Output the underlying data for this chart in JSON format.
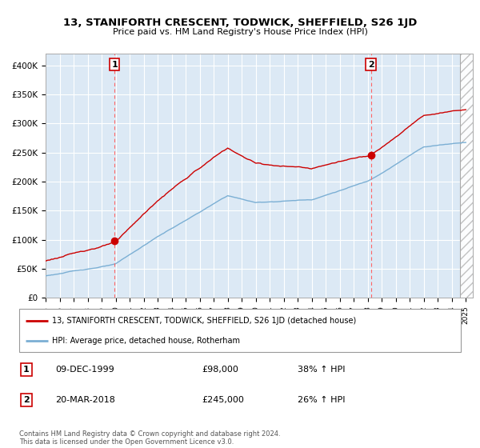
{
  "title": "13, STANIFORTH CRESCENT, TODWICK, SHEFFIELD, S26 1JD",
  "subtitle": "Price paid vs. HM Land Registry's House Price Index (HPI)",
  "ylabel_ticks": [
    "£0",
    "£50K",
    "£100K",
    "£150K",
    "£200K",
    "£250K",
    "£300K",
    "£350K",
    "£400K"
  ],
  "ylim": [
    0,
    420000
  ],
  "xlim_start": 1995.0,
  "xlim_end": 2025.5,
  "hpi_color": "#7bafd4",
  "price_color": "#cc0000",
  "marker1_year": 1999.92,
  "marker1_price": 98000,
  "marker2_year": 2018.22,
  "marker2_price": 245000,
  "dashed_line1_x": 1999.92,
  "dashed_line2_x": 2018.22,
  "legend_line1": "13, STANIFORTH CRESCENT, TODWICK, SHEFFIELD, S26 1JD (detached house)",
  "legend_line2": "HPI: Average price, detached house, Rotherham",
  "table_row1": [
    "1",
    "09-DEC-1999",
    "£98,000",
    "38% ↑ HPI"
  ],
  "table_row2": [
    "2",
    "20-MAR-2018",
    "£245,000",
    "26% ↑ HPI"
  ],
  "footer": "Contains HM Land Registry data © Crown copyright and database right 2024.\nThis data is licensed under the Open Government Licence v3.0.",
  "bg_color": "#ffffff",
  "chart_bg": "#dce9f5",
  "grid_color": "#ffffff",
  "hatch_color": "#bbbbbb"
}
